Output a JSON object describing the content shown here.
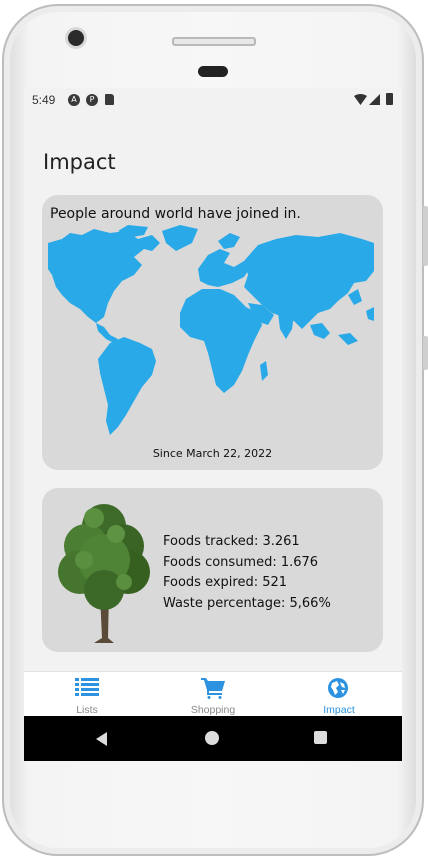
{
  "status_bar": {
    "time": "5:49",
    "left_icons": [
      "a-icon",
      "p-icon",
      "sim-icon"
    ],
    "right_icons": [
      "wifi-icon",
      "signal-icon",
      "battery-icon"
    ]
  },
  "page": {
    "title": "Impact"
  },
  "world_card": {
    "title": "People around world have joined in.",
    "since": "Since March 22, 2022",
    "map_color": "#29a9e8"
  },
  "stats_card": {
    "lines": [
      "Foods tracked: 3.261",
      "Foods consumed: 1.676",
      "Foods expired: 521",
      "Waste percentage: 5,66%"
    ]
  },
  "bottom_nav": {
    "items": [
      {
        "label": "Lists",
        "icon": "list-icon",
        "active": false
      },
      {
        "label": "Shopping",
        "icon": "cart-icon",
        "active": false
      },
      {
        "label": "Impact",
        "icon": "globe-icon",
        "active": true
      }
    ],
    "accent": "#2d93e0"
  }
}
